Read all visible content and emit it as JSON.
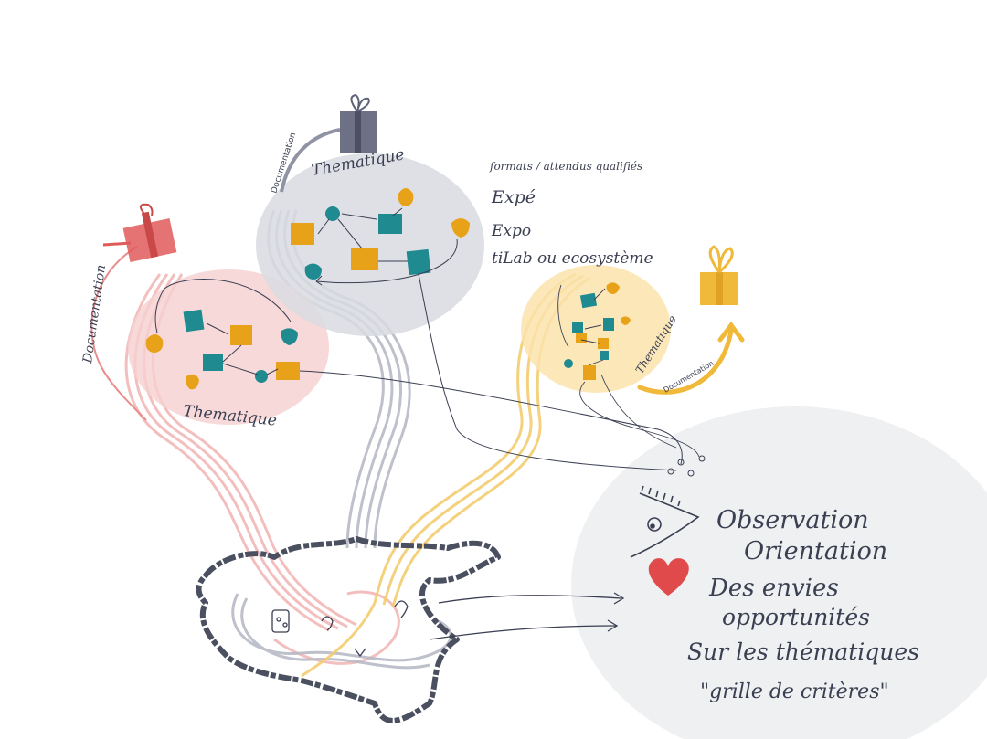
{
  "colors": {
    "pink": "#e88c8c",
    "pink_fill": "#f6cfcf",
    "grey": "#8f93a3",
    "grey_fill": "#d9dae2",
    "yellow": "#f0b93a",
    "yellow_fill": "#fbe3ad",
    "teal": "#1f8a8f",
    "orange": "#e7a219",
    "red_gift": "#e05a5a",
    "heart": "#e04a4a",
    "ink": "#3a3f52",
    "panel": "#eef0f1"
  },
  "groups": {
    "pink": {
      "label": "Thematique",
      "doc_label": "Documentation",
      "gift_icon": "gift-icon",
      "color": "#e88c8c"
    },
    "grey": {
      "label": "Thematique",
      "doc_label": "Documentation",
      "gift_icon": "gift-icon",
      "color": "#8f93a3"
    },
    "yellow": {
      "label": "Thematique",
      "doc_label": "Documentation",
      "gift_icon": "gift-icon",
      "color": "#f0b93a"
    }
  },
  "formats": {
    "heading": "formats / attendus qualifiés",
    "items": [
      "Expé",
      "Expo",
      "tiLab ou ecosystème"
    ]
  },
  "observation": {
    "lines": [
      "Observation",
      "Orientation",
      "Des envies",
      "opportunités",
      "Sur les thématiques",
      "\"grille de critères\""
    ],
    "eye_icon": "eye-icon",
    "heart_icon": "heart-icon"
  }
}
